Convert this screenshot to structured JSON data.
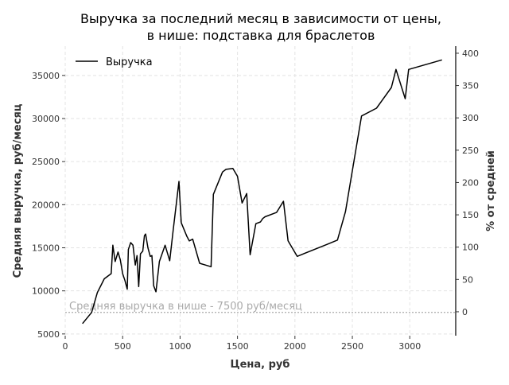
{
  "chart_data": {
    "type": "line",
    "title": "Выручка за последний месяц в зависимости от цены,\nв нише: подставка для браслетов",
    "xlabel": "Цена, руб",
    "ylabel": "Средняя выручка, руб/месяц",
    "y2label": "% от средней",
    "xlim": [
      0,
      3400
    ],
    "ylim": [
      4800,
      38400
    ],
    "y2lim": [
      -37,
      411
    ],
    "xticks": [
      "0",
      "500",
      "1000",
      "1500",
      "2000",
      "2500",
      "3000"
    ],
    "yticks": [
      "5000",
      "10000",
      "15000",
      "20000",
      "25000",
      "30000",
      "35000"
    ],
    "y2ticks": [
      "0",
      "50",
      "100",
      "150",
      "200",
      "250",
      "300",
      "350",
      "400"
    ],
    "grid": true,
    "legend": {
      "position": "top-left",
      "entries": [
        "Выручка"
      ]
    },
    "reference_line": {
      "y": 7500,
      "label": "Средняя выручка в нише - 7500 руб/месяц"
    },
    "colors": {
      "line": "#000000",
      "reference": "#aaaaaa",
      "grid": "#e3e3e3"
    },
    "series": [
      {
        "name": "Выручка",
        "x": [
          150,
          230,
          280,
          340,
          400,
          415,
          435,
          460,
          480,
          500,
          520,
          540,
          550,
          570,
          590,
          610,
          625,
          640,
          655,
          675,
          690,
          700,
          720,
          740,
          755,
          770,
          790,
          820,
          870,
          910,
          940,
          990,
          1010,
          1060,
          1080,
          1110,
          1170,
          1270,
          1290,
          1370,
          1400,
          1460,
          1500,
          1540,
          1580,
          1610,
          1660,
          1700,
          1720,
          1740,
          1840,
          1900,
          1940,
          2020,
          2280,
          2370,
          2440,
          2580,
          2710,
          2840,
          2880,
          2960,
          2990,
          3280
        ],
        "y": [
          6200,
          7500,
          9800,
          11400,
          12000,
          15300,
          13400,
          14500,
          13600,
          12000,
          11200,
          10200,
          14800,
          15600,
          15300,
          13000,
          14100,
          10500,
          14300,
          14600,
          16400,
          16600,
          15000,
          14000,
          14100,
          10600,
          9900,
          13400,
          15300,
          13500,
          17000,
          22700,
          17900,
          16300,
          15800,
          16000,
          13200,
          12800,
          21200,
          23800,
          24100,
          24200,
          23300,
          20200,
          21300,
          14200,
          17800,
          18000,
          18400,
          18600,
          19100,
          20400,
          15800,
          14000,
          15400,
          15900,
          19200,
          30300,
          31200,
          33600,
          35700,
          32300,
          35700,
          36800
        ]
      }
    ]
  }
}
